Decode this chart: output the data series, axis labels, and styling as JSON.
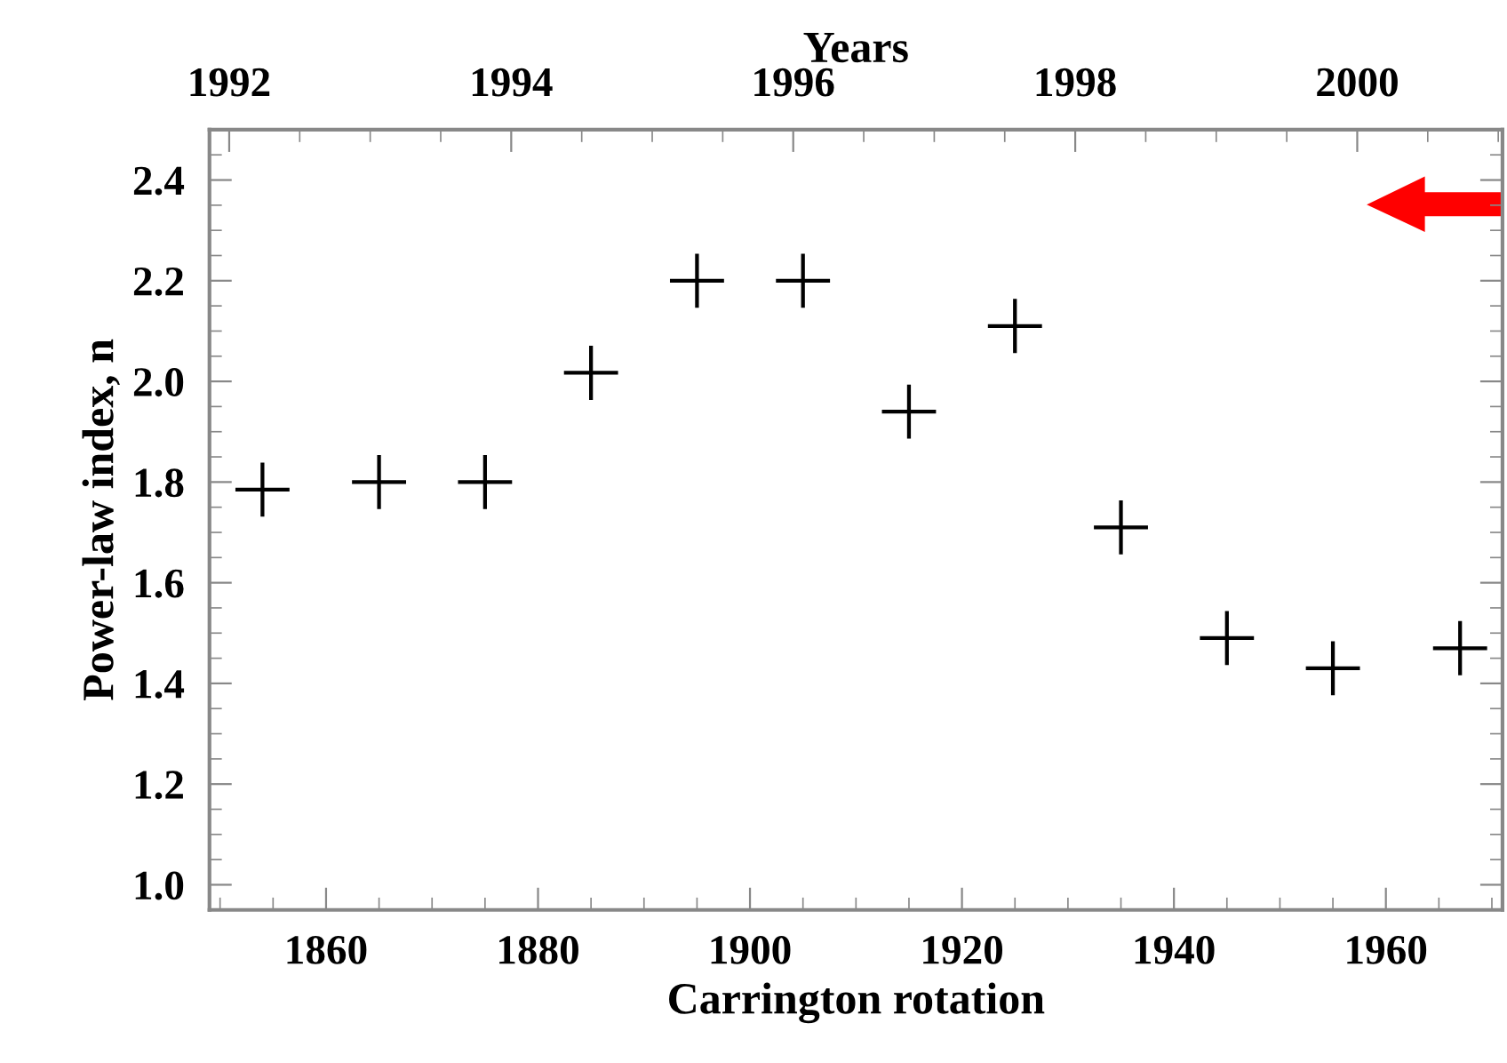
{
  "chart_data": {
    "type": "scatter",
    "xlabel": "Carrington rotation",
    "ylabel": "Power-law index, n",
    "x2label": "Years",
    "x": [
      1854,
      1865,
      1875,
      1885,
      1895,
      1905,
      1915,
      1925,
      1935,
      1945,
      1955,
      1967
    ],
    "values": [
      1.785,
      1.8,
      1.8,
      2.017,
      2.2,
      2.2,
      1.94,
      2.11,
      1.71,
      1.49,
      1.43,
      1.47
    ],
    "color": "#000000",
    "marker": "cross",
    "grid": false,
    "legend": false,
    "xlim": [
      1849,
      1971
    ],
    "xticks": [
      1860,
      1880,
      1900,
      1920,
      1940,
      1960
    ],
    "ylim": [
      0.95,
      2.5
    ],
    "yticks": [
      {
        "value": 1.0,
        "label": "1.0"
      },
      {
        "value": 1.2,
        "label": "1.2"
      },
      {
        "value": 1.4,
        "label": "1.4"
      },
      {
        "value": 1.6,
        "label": "1.6"
      },
      {
        "value": 1.8,
        "label": "1.8"
      },
      {
        "value": 2.0,
        "label": "2.0"
      },
      {
        "value": 2.2,
        "label": "2.2"
      },
      {
        "value": 2.4,
        "label": "2.4"
      }
    ],
    "x2lim": [
      1991.86,
      2001.03
    ],
    "x2ticks": [
      1992,
      1994,
      1996,
      1998,
      2000
    ]
  }
}
